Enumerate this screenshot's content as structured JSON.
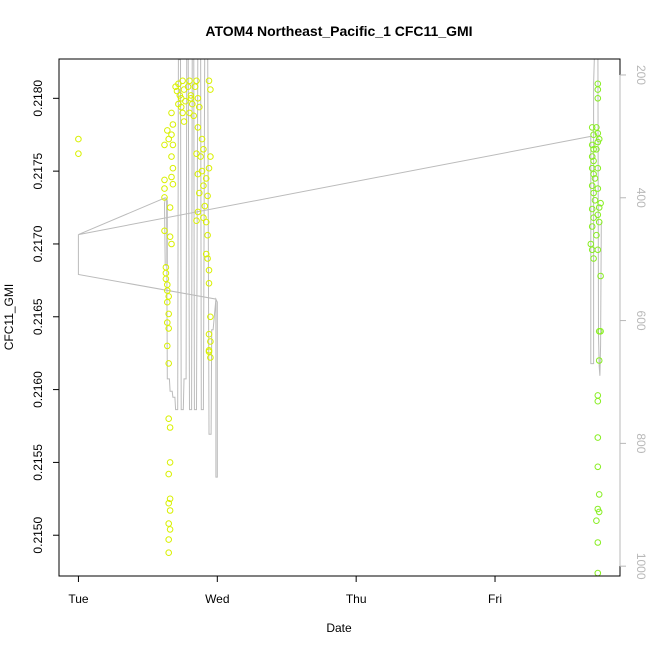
{
  "chart_data": {
    "type": "scatter",
    "title": "ATOM4 Northeast_Pacific_1 CFC11_GMI",
    "xlabel": "Date",
    "ylabel": "CFC11_GMI",
    "x_unit": "days since Tue 00:00",
    "x_ticks": [
      {
        "label": "Tue",
        "value": 0
      },
      {
        "label": "Wed",
        "value": 1
      },
      {
        "label": "Thu",
        "value": 2
      },
      {
        "label": "Fri",
        "value": 3
      }
    ],
    "xlim": [
      -0.14,
      3.9
    ],
    "y_ticks": [
      0.215,
      0.2155,
      0.216,
      0.2165,
      0.217,
      0.2175,
      0.218
    ],
    "y_tick_labels": [
      "0.2150",
      "0.2155",
      "0.2160",
      "0.2165",
      "0.2170",
      "0.2175",
      "0.2180"
    ],
    "ylim": [
      0.21472,
      0.21827
    ],
    "right_axis": {
      "ticks": [
        200,
        400,
        600,
        800,
        1000
      ],
      "tick_labels": [
        "200",
        "400",
        "600",
        "800",
        "1000"
      ],
      "ylim_reversed": [
        1016,
        174
      ],
      "color": "#b8b8b8"
    },
    "colors": {
      "points_early": "#d9f000",
      "points_late": "#88ee22",
      "line": "#bbbbbb",
      "frame": "#000000"
    },
    "series": [
      {
        "kind": "points",
        "points": [
          [
            0.0,
            0.21772
          ],
          [
            0.0,
            0.21762
          ],
          [
            0.62,
            0.21768
          ],
          [
            0.62,
            0.21744
          ],
          [
            0.62,
            0.21738
          ],
          [
            0.62,
            0.21732
          ],
          [
            0.62,
            0.21709
          ],
          [
            0.63,
            0.21684
          ],
          [
            0.63,
            0.2168
          ],
          [
            0.63,
            0.21676
          ],
          [
            0.64,
            0.21672
          ],
          [
            0.64,
            0.21668
          ],
          [
            0.65,
            0.21664
          ],
          [
            0.64,
            0.2166
          ],
          [
            0.65,
            0.21652
          ],
          [
            0.64,
            0.21646
          ],
          [
            0.65,
            0.21642
          ],
          [
            0.64,
            0.2163
          ],
          [
            0.65,
            0.21618
          ],
          [
            0.65,
            0.2158
          ],
          [
            0.66,
            0.21574
          ],
          [
            0.66,
            0.2155
          ],
          [
            0.65,
            0.21542
          ],
          [
            0.66,
            0.21525
          ],
          [
            0.65,
            0.21522
          ],
          [
            0.66,
            0.21517
          ],
          [
            0.65,
            0.21508
          ],
          [
            0.66,
            0.21504
          ],
          [
            0.65,
            0.21497
          ],
          [
            0.65,
            0.21488
          ],
          [
            0.64,
            0.21778
          ],
          [
            0.65,
            0.21772
          ],
          [
            0.66,
            0.21725
          ],
          [
            0.66,
            0.21705
          ],
          [
            0.67,
            0.2179
          ],
          [
            0.68,
            0.21782
          ],
          [
            0.67,
            0.21775
          ],
          [
            0.68,
            0.21768
          ],
          [
            0.67,
            0.2176
          ],
          [
            0.68,
            0.21752
          ],
          [
            0.67,
            0.21746
          ],
          [
            0.68,
            0.21741
          ],
          [
            0.67,
            0.217
          ],
          [
            0.7,
            0.21808
          ],
          [
            0.71,
            0.21805
          ],
          [
            0.72,
            0.2181
          ],
          [
            0.73,
            0.21802
          ],
          [
            0.72,
            0.21796
          ],
          [
            0.74,
            0.218
          ],
          [
            0.75,
            0.21812
          ],
          [
            0.76,
            0.21806
          ],
          [
            0.77,
            0.21798
          ],
          [
            0.75,
            0.2179
          ],
          [
            0.76,
            0.21784
          ],
          [
            0.74,
            0.21794
          ],
          [
            0.79,
            0.21808
          ],
          [
            0.8,
            0.21812
          ],
          [
            0.81,
            0.21802
          ],
          [
            0.82,
            0.21796
          ],
          [
            0.8,
            0.2179
          ],
          [
            0.83,
            0.21788
          ],
          [
            0.81,
            0.218
          ],
          [
            0.84,
            0.21808
          ],
          [
            0.85,
            0.21812
          ],
          [
            0.86,
            0.218
          ],
          [
            0.87,
            0.21794
          ],
          [
            0.86,
            0.2178
          ],
          [
            0.85,
            0.21762
          ],
          [
            0.86,
            0.21748
          ],
          [
            0.87,
            0.21735
          ],
          [
            0.86,
            0.21722
          ],
          [
            0.85,
            0.21716
          ],
          [
            0.88,
            0.2176
          ],
          [
            0.89,
            0.21772
          ],
          [
            0.9,
            0.21765
          ],
          [
            0.89,
            0.2175
          ],
          [
            0.9,
            0.2174
          ],
          [
            0.91,
            0.21726
          ],
          [
            0.9,
            0.21718
          ],
          [
            0.92,
            0.21745
          ],
          [
            0.93,
            0.21733
          ],
          [
            0.92,
            0.21715
          ],
          [
            0.93,
            0.21706
          ],
          [
            0.92,
            0.21693
          ],
          [
            0.94,
            0.21673
          ],
          [
            0.93,
            0.2169
          ],
          [
            0.94,
            0.21682
          ],
          [
            0.95,
            0.2165
          ],
          [
            0.94,
            0.21638
          ],
          [
            0.95,
            0.21633
          ],
          [
            0.94,
            0.21626
          ],
          [
            0.95,
            0.21622
          ],
          [
            0.94,
            0.21627
          ],
          [
            0.94,
            0.21752
          ],
          [
            0.95,
            0.2176
          ],
          [
            0.94,
            0.21812
          ],
          [
            0.95,
            0.21806
          ]
        ]
      },
      {
        "kind": "points",
        "points": [
          [
            3.7,
            0.2178
          ],
          [
            3.71,
            0.21775
          ],
          [
            3.7,
            0.21768
          ],
          [
            3.71,
            0.21765
          ],
          [
            3.7,
            0.2176
          ],
          [
            3.71,
            0.21757
          ],
          [
            3.7,
            0.21752
          ],
          [
            3.71,
            0.21748
          ],
          [
            3.72,
            0.21745
          ],
          [
            3.7,
            0.2174
          ],
          [
            3.71,
            0.21735
          ],
          [
            3.72,
            0.2173
          ],
          [
            3.7,
            0.21724
          ],
          [
            3.71,
            0.21718
          ],
          [
            3.7,
            0.21712
          ],
          [
            3.69,
            0.217
          ],
          [
            3.7,
            0.21696
          ],
          [
            3.71,
            0.2169
          ],
          [
            3.73,
            0.2178
          ],
          [
            3.74,
            0.2177
          ],
          [
            3.75,
            0.21772
          ],
          [
            3.74,
            0.21776
          ],
          [
            3.73,
            0.21765
          ],
          [
            3.74,
            0.21752
          ],
          [
            3.74,
            0.21738
          ],
          [
            3.75,
            0.21725
          ],
          [
            3.74,
            0.2172
          ],
          [
            3.73,
            0.21706
          ],
          [
            3.74,
            0.21696
          ],
          [
            3.74,
            0.2181
          ],
          [
            3.74,
            0.21806
          ],
          [
            3.74,
            0.218
          ],
          [
            3.75,
            0.21715
          ],
          [
            3.76,
            0.21728
          ],
          [
            3.76,
            0.21678
          ],
          [
            3.75,
            0.2164
          ],
          [
            3.76,
            0.2164
          ],
          [
            3.75,
            0.2162
          ],
          [
            3.74,
            0.21596
          ],
          [
            3.74,
            0.21592
          ],
          [
            3.74,
            0.21567
          ],
          [
            3.74,
            0.21547
          ],
          [
            3.75,
            0.21528
          ],
          [
            3.74,
            0.21518
          ],
          [
            3.75,
            0.21516
          ],
          [
            3.73,
            0.2151
          ],
          [
            3.74,
            0.21495
          ],
          [
            3.74,
            0.21474
          ]
        ]
      },
      {
        "kind": "line",
        "right_axis": true,
        "points": [
          [
            0.0,
            460
          ],
          [
            0.0,
            525
          ],
          [
            0.99,
            565
          ],
          [
            0.99,
            855
          ],
          [
            1.0,
            855
          ],
          [
            1.0,
            570
          ],
          [
            0.99,
            565
          ],
          [
            0.97,
            615
          ],
          [
            0.96,
            615
          ],
          [
            0.955,
            785
          ],
          [
            0.94,
            785
          ],
          [
            0.93,
            115
          ],
          [
            0.93,
            115
          ],
          [
            0.91,
            120
          ],
          [
            0.9,
            745
          ],
          [
            0.885,
            745
          ],
          [
            0.88,
            125
          ],
          [
            0.86,
            125
          ],
          [
            0.85,
            745
          ],
          [
            0.835,
            745
          ],
          [
            0.83,
            100
          ],
          [
            0.82,
            100
          ],
          [
            0.815,
            745
          ],
          [
            0.8,
            745
          ],
          [
            0.79,
            115
          ],
          [
            0.78,
            115
          ],
          [
            0.775,
            695
          ],
          [
            0.76,
            695
          ],
          [
            0.755,
            745
          ],
          [
            0.74,
            745
          ],
          [
            0.735,
            175
          ],
          [
            0.72,
            175
          ],
          [
            0.715,
            745
          ],
          [
            0.7,
            745
          ],
          [
            0.695,
            725
          ],
          [
            0.68,
            725
          ],
          [
            0.675,
            715
          ],
          [
            0.66,
            715
          ],
          [
            0.655,
            695
          ],
          [
            0.645,
            695
          ],
          [
            0.64,
            695
          ],
          [
            0.635,
            400
          ],
          [
            0.64,
            405
          ],
          [
            0.64,
            510
          ],
          [
            0.625,
            510
          ],
          [
            0.62,
            410
          ],
          [
            0.625,
            400
          ],
          [
            0.0,
            460
          ],
          [
            3.69,
            300
          ],
          [
            3.69,
            670
          ],
          [
            3.71,
            670
          ],
          [
            3.71,
            215
          ],
          [
            3.72,
            135
          ],
          [
            3.73,
            80
          ],
          [
            3.74,
            80
          ],
          [
            3.745,
            625
          ],
          [
            3.75,
            675
          ],
          [
            3.755,
            690
          ],
          [
            3.76,
            640
          ],
          [
            3.765,
            440
          ]
        ]
      }
    ]
  }
}
